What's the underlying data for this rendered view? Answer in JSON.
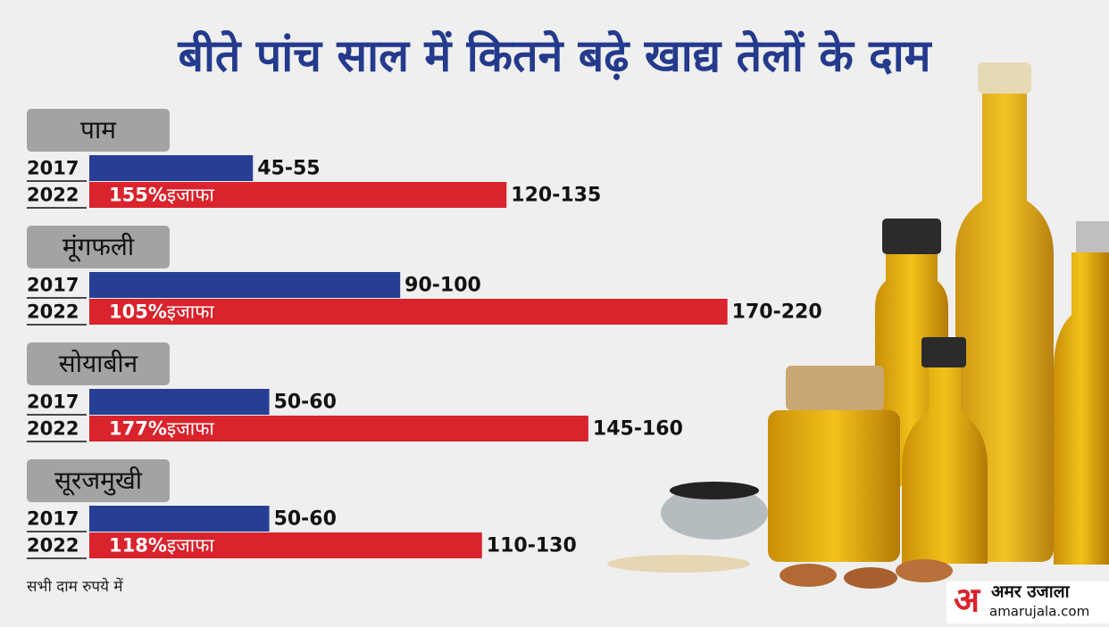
{
  "chart_data": {
    "type": "bar",
    "title": "बीते पांच साल में कितने बढ़े खाद्य तेलों के दाम",
    "categories": [
      "पाम",
      "मूंगफली",
      "सोयाबीन",
      "सूरजमुखी"
    ],
    "series": [
      {
        "name": "2017",
        "color": "#263f94",
        "values": [
          50,
          95,
          55,
          55
        ],
        "value_labels": [
          "45-55",
          "90-100",
          "50-60",
          "50-60"
        ]
      },
      {
        "name": "2022",
        "color": "#d9232d",
        "values": [
          127.5,
          195,
          152.5,
          120
        ],
        "value_labels": [
          "120-135",
          "170-220",
          "145-160",
          "110-130"
        ]
      }
    ],
    "increase": {
      "values": [
        155,
        105,
        177,
        118
      ],
      "value_labels": [
        "155%",
        "105%",
        "177%",
        "118%"
      ],
      "text": "इजाफा"
    },
    "note": "सभी दाम रुपये में",
    "logo": {
      "name": "अमर उजाला",
      "site": "amarujala.com"
    }
  }
}
